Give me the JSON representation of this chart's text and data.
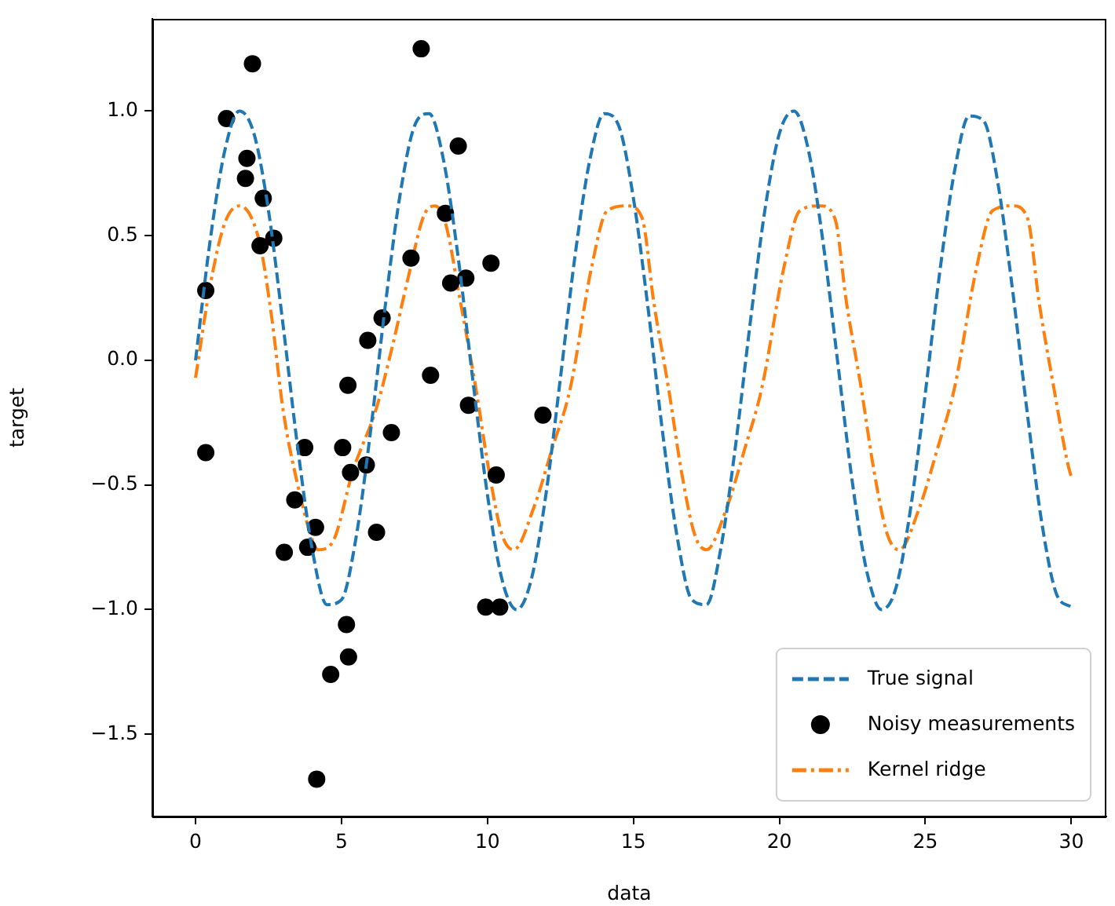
{
  "chart_data": {
    "type": "line",
    "xlabel": "data",
    "ylabel": "target",
    "xlim": [
      -1.48,
      31.2
    ],
    "ylim": [
      -1.83,
      1.37
    ],
    "xticks": [
      0,
      5,
      10,
      15,
      20,
      25,
      30
    ],
    "yticks": [
      {
        "value": -1.5,
        "label": "−1.5"
      },
      {
        "value": -1,
        "label": "−1.0"
      },
      {
        "value": -0.5,
        "label": "−0.5"
      },
      {
        "value": 0,
        "label": "0.0"
      },
      {
        "value": 0.5,
        "label": "0.5"
      },
      {
        "value": 1,
        "label": "1.0"
      }
    ],
    "grid": false,
    "legend": "bottom right",
    "series": [
      {
        "name": "True signal",
        "color": "#1f77b4",
        "line_style": "dashed",
        "marker": "none",
        "x": [
          0,
          0.5,
          1,
          1.5,
          2,
          2.5,
          3,
          3.5,
          4,
          4.5,
          5,
          5.5,
          6,
          6.5,
          7,
          7.5,
          8,
          8.5,
          9,
          9.5,
          10,
          10.5,
          11,
          11.5,
          12,
          12.5,
          13,
          13.5,
          14,
          14.5,
          15,
          15.5,
          16,
          16.5,
          17,
          17.5,
          18,
          18.5,
          19,
          19.5,
          20,
          20.5,
          21,
          21.5,
          22,
          22.5,
          23,
          23.5,
          24,
          24.5,
          25,
          25.5,
          26,
          26.5,
          27,
          27.5,
          28,
          28.5,
          29,
          29.5,
          30
        ],
        "values": [
          0,
          0.48,
          0.84,
          1.0,
          0.91,
          0.6,
          0.14,
          -0.35,
          -0.76,
          -0.98,
          -0.96,
          -0.71,
          -0.28,
          0.22,
          0.66,
          0.94,
          0.99,
          0.8,
          0.41,
          -0.08,
          -0.54,
          -0.88,
          -1.0,
          -0.88,
          -0.54,
          -0.07,
          0.42,
          0.8,
          0.99,
          0.94,
          0.65,
          0.21,
          -0.29,
          -0.71,
          -0.96,
          -0.98,
          -0.75,
          -0.34,
          0.15,
          0.6,
          0.91,
          1.0,
          0.84,
          0.47,
          -0.01,
          -0.49,
          -0.85,
          -1.0,
          -0.91,
          -0.59,
          -0.13,
          0.36,
          0.76,
          0.98,
          0.96,
          0.7,
          0.27,
          -0.22,
          -0.66,
          -0.94,
          -0.99
        ]
      },
      {
        "name": "Noisy measurements",
        "type": "scatter",
        "color": "#000000",
        "marker": "circle",
        "x": [
          0.35,
          0.35,
          1.06,
          1.71,
          1.76,
          1.95,
          2.21,
          2.32,
          2.68,
          3.04,
          3.4,
          3.74,
          3.84,
          4.11,
          4.15,
          4.63,
          5.04,
          5.17,
          5.22,
          5.24,
          5.31,
          5.85,
          5.9,
          6.2,
          6.39,
          6.71,
          7.38,
          7.73,
          8.05,
          8.56,
          8.74,
          9.0,
          9.26,
          9.35,
          9.94,
          10.12,
          10.3,
          10.42,
          11.9
        ],
        "values": [
          0.28,
          -0.37,
          0.97,
          0.73,
          0.81,
          1.19,
          0.46,
          0.65,
          0.49,
          -0.77,
          -0.56,
          -0.35,
          -0.75,
          -0.67,
          -1.68,
          -1.26,
          -0.35,
          -1.06,
          -0.1,
          -1.19,
          -0.45,
          -0.42,
          0.08,
          -0.69,
          0.17,
          -0.29,
          0.41,
          1.25,
          -0.06,
          0.59,
          0.31,
          0.86,
          0.33,
          -0.18,
          -0.99,
          0.39,
          -0.46,
          -0.99,
          -0.22
        ]
      },
      {
        "name": "Kernel ridge",
        "color": "#ff7f0e",
        "line_style": "dashdot",
        "marker": "none",
        "x": [
          0,
          0.5,
          1,
          1.5,
          2.18,
          2.6,
          3,
          3.5,
          4,
          4.2,
          4.69,
          5.4,
          6.2,
          6.75,
          7.28,
          7.82,
          8.2,
          8.54,
          9.08,
          9.6,
          10.06,
          10.5,
          10.9,
          11.59,
          12.2,
          12.84,
          13.56,
          14.1,
          14.8,
          15.3,
          15.7,
          16.2,
          16.65,
          17.1,
          17.5,
          18.2,
          18.8,
          19.4,
          20.15,
          20.7,
          21.4,
          21.9,
          22.3,
          22.8,
          23.25,
          23.7,
          24.1,
          24.8,
          25.4,
          26.0,
          26.75,
          27.3,
          28.0,
          28.5,
          28.9,
          29.4,
          29.85,
          30
        ],
        "values": [
          -0.07,
          0.3,
          0.55,
          0.62,
          0.48,
          0.18,
          -0.2,
          -0.5,
          -0.72,
          -0.76,
          -0.73,
          -0.44,
          -0.19,
          0.06,
          0.33,
          0.58,
          0.62,
          0.56,
          0.23,
          -0.11,
          -0.45,
          -0.7,
          -0.76,
          -0.59,
          -0.36,
          -0.11,
          0.37,
          0.6,
          0.62,
          0.57,
          0.23,
          -0.11,
          -0.45,
          -0.7,
          -0.76,
          -0.59,
          -0.36,
          -0.11,
          0.37,
          0.6,
          0.62,
          0.57,
          0.23,
          -0.11,
          -0.45,
          -0.7,
          -0.76,
          -0.59,
          -0.36,
          -0.11,
          0.37,
          0.6,
          0.62,
          0.57,
          0.23,
          -0.11,
          -0.4,
          -0.47
        ]
      }
    ]
  }
}
